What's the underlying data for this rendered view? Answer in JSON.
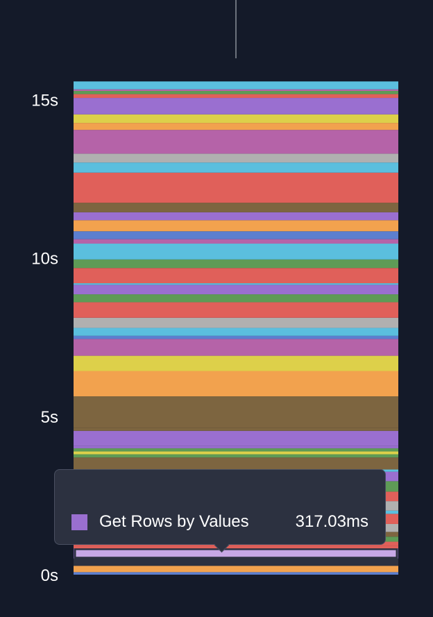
{
  "chart_data": {
    "type": "bar",
    "stacked": true,
    "y_axis": {
      "unit": "s",
      "ylim": [
        0,
        16.3
      ],
      "ticks": [
        {
          "value": 0,
          "label": "0s"
        },
        {
          "value": 5,
          "label": "5s"
        },
        {
          "value": 10,
          "label": "10s"
        },
        {
          "value": 15,
          "label": "15s"
        }
      ]
    },
    "grid": false,
    "legend": "none",
    "segments_seconds_bottom_to_top": [
      {
        "duration": 0.08,
        "color": "#5c7fcf"
      },
      {
        "duration": 0.2,
        "color": "#f2a24e"
      },
      {
        "duration": 0.23,
        "color": "#2c3140"
      },
      {
        "duration": 0.32,
        "color": "#9a6fd0",
        "highlighted": true
      },
      {
        "duration": 0.07,
        "color": "#e0605a"
      },
      {
        "duration": 0.14,
        "color": "#e0605a"
      },
      {
        "duration": 0.16,
        "color": "#5e9b56"
      },
      {
        "duration": 0.15,
        "color": "#7d6540"
      },
      {
        "duration": 0.25,
        "color": "#b0b0b0"
      },
      {
        "duration": 0.32,
        "color": "#e0605a"
      },
      {
        "duration": 0.1,
        "color": "#5bbfde"
      },
      {
        "duration": 0.3,
        "color": "#b0b0b0"
      },
      {
        "duration": 0.3,
        "color": "#e0605a"
      },
      {
        "duration": 0.33,
        "color": "#5e9b56"
      },
      {
        "duration": 0.3,
        "color": "#9a6fd0"
      },
      {
        "duration": 0.07,
        "color": "#5bbfde"
      },
      {
        "duration": 0.38,
        "color": "#7d6540"
      },
      {
        "duration": 0.1,
        "color": "#5e9b56"
      },
      {
        "duration": 0.09,
        "color": "#ddd04a"
      },
      {
        "duration": 0.1,
        "color": "#5e9b56"
      },
      {
        "duration": 0.08,
        "color": "#9a6fd0"
      },
      {
        "duration": 0.47,
        "color": "#9a6fd0"
      },
      {
        "duration": 0.09,
        "color": "#7d6540"
      },
      {
        "duration": 1.0,
        "color": "#7d6540"
      },
      {
        "duration": 0.8,
        "color": "#f2a24e"
      },
      {
        "duration": 0.48,
        "color": "#ddd04a"
      },
      {
        "duration": 0.53,
        "color": "#b563a8"
      },
      {
        "duration": 0.1,
        "color": "#5c7fcf"
      },
      {
        "duration": 0.25,
        "color": "#5bbfde"
      },
      {
        "duration": 0.32,
        "color": "#b0b0b0"
      },
      {
        "duration": 0.49,
        "color": "#e0605a"
      },
      {
        "duration": 0.25,
        "color": "#5e9b56"
      },
      {
        "duration": 0.3,
        "color": "#9a6fd0"
      },
      {
        "duration": 0.05,
        "color": "#5bbfde"
      },
      {
        "duration": 0.48,
        "color": "#e0605a"
      },
      {
        "duration": 0.27,
        "color": "#5e9b56"
      },
      {
        "duration": 0.5,
        "color": "#5bbfde"
      },
      {
        "duration": 0.14,
        "color": "#b563a8"
      },
      {
        "duration": 0.25,
        "color": "#5c7fcf"
      },
      {
        "duration": 0.35,
        "color": "#f2a24e"
      },
      {
        "duration": 0.25,
        "color": "#9a6fd0"
      },
      {
        "duration": 0.3,
        "color": "#7d6540"
      },
      {
        "duration": 0.95,
        "color": "#e0605a"
      },
      {
        "duration": 0.32,
        "color": "#5bbfde"
      },
      {
        "duration": 0.28,
        "color": "#b0b0b0"
      },
      {
        "duration": 0.75,
        "color": "#b563a8"
      },
      {
        "duration": 0.22,
        "color": "#f2a24e"
      },
      {
        "duration": 0.27,
        "color": "#ddd04a"
      },
      {
        "duration": 0.52,
        "color": "#9a6fd0"
      },
      {
        "duration": 0.12,
        "color": "#e0605a"
      },
      {
        "duration": 0.1,
        "color": "#5e9b56"
      },
      {
        "duration": 0.05,
        "color": "#b563a8"
      },
      {
        "duration": 0.25,
        "color": "#5bbfde"
      }
    ]
  },
  "tooltip": {
    "series_name": "Get Rows by Values",
    "value_text": "317.03ms",
    "swatch_color": "#9a6fd0"
  }
}
